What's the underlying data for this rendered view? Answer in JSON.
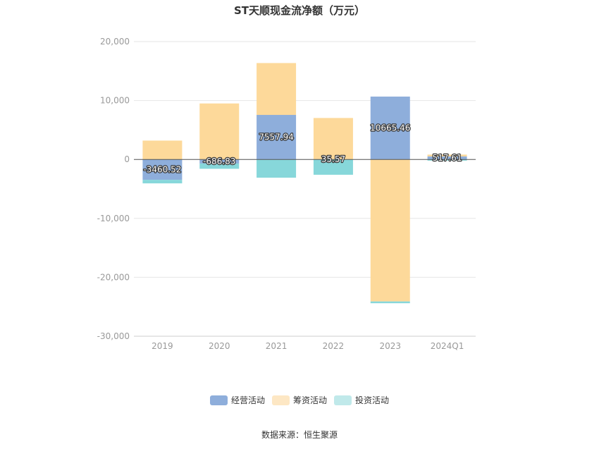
{
  "chart_data": {
    "type": "bar",
    "stacked": true,
    "title": "ST天顺现金流净额（万元）",
    "categories": [
      "2019",
      "2020",
      "2021",
      "2022",
      "2023",
      "2024Q1"
    ],
    "ylim": [
      -30000,
      20000
    ],
    "yticks": [
      20000,
      10000,
      0,
      -10000,
      -20000,
      -30000
    ],
    "ytick_labels": [
      "20,000",
      "10,000",
      "0",
      "-10,000",
      "-20,000",
      "-30,000"
    ],
    "grid": true,
    "legend_position": "bottom",
    "series": [
      {
        "name": "经营活动",
        "color": "#8eaedb",
        "values": [
          -3460.52,
          -686.83,
          7557.94,
          35.57,
          10665.46,
          517.61
        ],
        "data_labels": [
          "-3460.52",
          "-686.83",
          "7557.94",
          "35.57",
          "10665.46",
          "517.61"
        ]
      },
      {
        "name": "筹资活动",
        "color": "#fdd99a",
        "values": [
          3200,
          9500,
          8800,
          7000,
          -24100,
          300
        ]
      },
      {
        "name": "投资活动",
        "color": "#87d7da",
        "values": [
          -600,
          -900,
          -3100,
          -2600,
          -300,
          -200
        ]
      }
    ],
    "legend_colors": [
      "#8eaedb",
      "#fde7c4",
      "#c0e9ea"
    ],
    "source": "数据来源：恒生聚源"
  }
}
